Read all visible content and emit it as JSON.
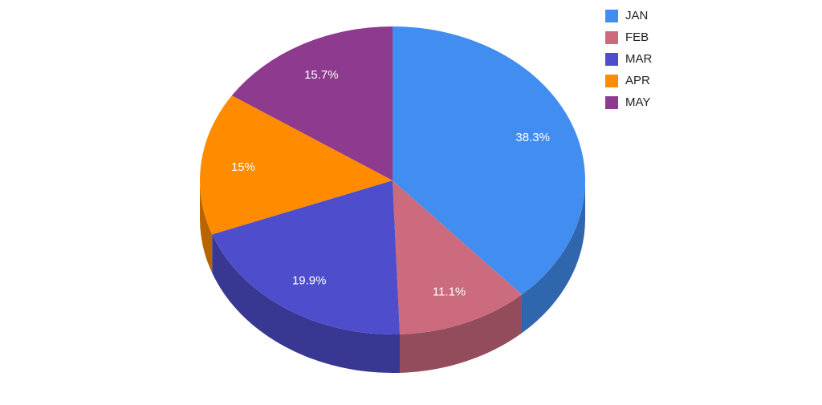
{
  "chart_data": {
    "type": "pie",
    "style": "3d",
    "title": "",
    "categories": [
      "JAN",
      "FEB",
      "MAR",
      "APR",
      "MAY"
    ],
    "values": [
      38.3,
      11.1,
      19.9,
      15,
      15.7
    ],
    "labels": [
      "38.3%",
      "11.1%",
      "19.9%",
      "15%",
      "15.7%"
    ],
    "colors": [
      "#428ef0",
      "#cc6a7e",
      "#4e4ecc",
      "#ff8c00",
      "#8e3a8e"
    ],
    "legend_position": "top-right"
  }
}
